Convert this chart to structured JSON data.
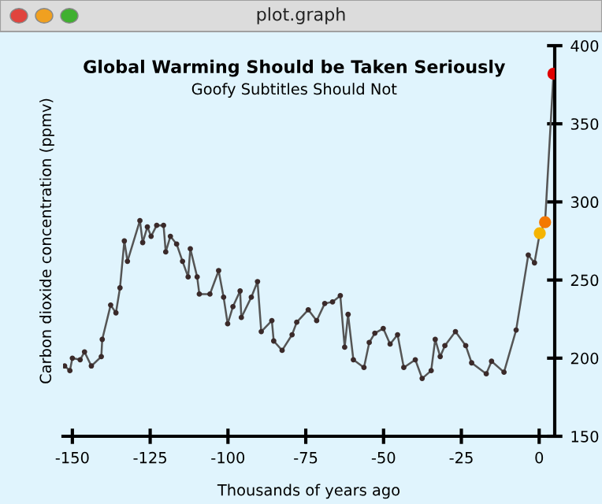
{
  "chart_data": {
    "type": "line",
    "title": "Global Warming Should be Taken Seriously",
    "subtitle": "Goofy Subtitles Should Not",
    "xlabel": "Thousands of years ago",
    "ylabel": "Carbon dioxide concentration (ppmv)",
    "annotations": [
      "plot.graph"
    ],
    "xlim": [
      -153,
      5
    ],
    "ylim": [
      150,
      400
    ],
    "xticks": [
      -150,
      -125,
      -100,
      -75,
      -50,
      -25,
      0
    ],
    "yticks": [
      150,
      200,
      250,
      300,
      350,
      400
    ],
    "grid": false,
    "marker": "circle",
    "line_style": "solid",
    "series": [
      {
        "color": "#3a2a2a",
        "x": [
          -152.5,
          -150.8,
          -150,
          -147.5,
          -146.1,
          -143.9,
          -140.7,
          -140.4,
          -137.7,
          -136,
          -134.7,
          -133.3,
          -132.3,
          -128.3,
          -127.4,
          -125.9,
          -124.7,
          -122.9,
          -120.7,
          -120,
          -118.5,
          -116.5,
          -114.6,
          -112.8,
          -112.1,
          -109.9,
          -109.2,
          -105.8,
          -103,
          -101.4,
          -100.1,
          -98.4,
          -96.1,
          -95.7,
          -92.5,
          -90.5,
          -89.3,
          -85.9,
          -85.3,
          -82.6,
          -79.4,
          -77.9,
          -74.2,
          -71.5,
          -68.9,
          -66.4,
          -63.9,
          -62.5,
          -61.4,
          -59.7,
          -56.3,
          -54.6,
          -52.8,
          -50.1,
          -47.9,
          -45.5,
          -43.5,
          -39.8,
          -37.6,
          -34.7,
          -33.4,
          -31.8,
          -30.3,
          -26.9,
          -23.6,
          -21.7,
          -17,
          -15.3,
          -11.3,
          -7.4,
          -3.5,
          -1.5,
          0.2,
          1.9,
          4.6
        ],
        "values": [
          195,
          192,
          200,
          199,
          204,
          195,
          201,
          212,
          234,
          229,
          245,
          275,
          262,
          288,
          274,
          284,
          278,
          285,
          285,
          268,
          278,
          273,
          262,
          252,
          270,
          252,
          241,
          241,
          256,
          239,
          222,
          233,
          243,
          226,
          239,
          249,
          217,
          224,
          211,
          205,
          215,
          223,
          231,
          224,
          235,
          236,
          240,
          207,
          228,
          199,
          194,
          210,
          216,
          219,
          209,
          215,
          194,
          199,
          187,
          192,
          212,
          201,
          208,
          217,
          208,
          197,
          190,
          198,
          191,
          218,
          266,
          261,
          280,
          287,
          382
        ],
        "colors": [
          "#3a2a2a",
          "#3a2a2a",
          "#3a2a2a",
          "#3a2a2a",
          "#3a2a2a",
          "#3a2a2a",
          "#3a2a2a",
          "#3a2a2a",
          "#3a2a2a",
          "#3a2a2a",
          "#3a2a2a",
          "#3a2a2a",
          "#3a2a2a",
          "#3a2a2a",
          "#3a2a2a",
          "#3a2a2a",
          "#3a2a2a",
          "#3a2a2a",
          "#3a2a2a",
          "#3a2a2a",
          "#3a2a2a",
          "#3a2a2a",
          "#3a2a2a",
          "#3a2a2a",
          "#3a2a2a",
          "#3a2a2a",
          "#3a2a2a",
          "#3a2a2a",
          "#3a2a2a",
          "#3a2a2a",
          "#3a2a2a",
          "#3a2a2a",
          "#3a2a2a",
          "#3a2a2a",
          "#3a2a2a",
          "#3a2a2a",
          "#3a2a2a",
          "#3a2a2a",
          "#3a2a2a",
          "#3a2a2a",
          "#3a2a2a",
          "#3a2a2a",
          "#3a2a2a",
          "#3a2a2a",
          "#3a2a2a",
          "#3a2a2a",
          "#3a2a2a",
          "#3a2a2a",
          "#3a2a2a",
          "#3a2a2a",
          "#3a2a2a",
          "#3a2a2a",
          "#3a2a2a",
          "#3a2a2a",
          "#3a2a2a",
          "#3a2a2a",
          "#3a2a2a",
          "#3a2a2a",
          "#3a2a2a",
          "#3a2a2a",
          "#3a2a2a",
          "#3a2a2a",
          "#3a2a2a",
          "#3a2a2a",
          "#3a2a2a",
          "#3a2a2a",
          "#3a2a2a",
          "#3a2a2a",
          "#3a2a2a",
          "#3a2a2a",
          "#3a2a2a",
          "#3a2a2a",
          "#f5b400",
          "#f47800",
          "#e00000"
        ]
      }
    ]
  }
}
